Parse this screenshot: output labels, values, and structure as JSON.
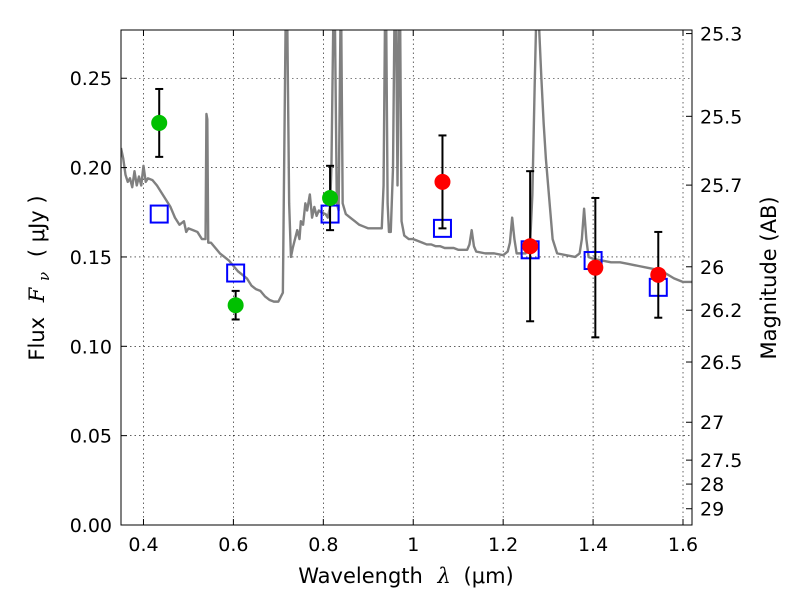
{
  "chart_data": {
    "type": "scatter",
    "title": "",
    "xlabel": "Wavelength",
    "xlabel_symbol": "λ",
    "xlabel_unit": "(μm)",
    "ylabel": "Flux",
    "ylabel_symbol": "F",
    "ylabel_subscript": "ν",
    "ylabel_unit": "( μJy )",
    "y2label": "Magnitude (AB)",
    "xlim": [
      0.35,
      1.62
    ],
    "ylim": [
      0.0,
      0.277
    ],
    "grid": true,
    "x_ticks": [
      {
        "value": 0.4,
        "label": "0.4"
      },
      {
        "value": 0.6,
        "label": "0.6"
      },
      {
        "value": 0.8,
        "label": "0.8"
      },
      {
        "value": 1.0,
        "label": "1"
      },
      {
        "value": 1.2,
        "label": "1.2"
      },
      {
        "value": 1.4,
        "label": "1.4"
      },
      {
        "value": 1.6,
        "label": "1.6"
      }
    ],
    "y_ticks": [
      {
        "value": 0.0,
        "label": "0.00"
      },
      {
        "value": 0.05,
        "label": "0.05"
      },
      {
        "value": 0.1,
        "label": "0.10"
      },
      {
        "value": 0.15,
        "label": "0.15"
      },
      {
        "value": 0.2,
        "label": "0.20"
      },
      {
        "value": 0.25,
        "label": "0.25"
      }
    ],
    "y2_ticks": [
      {
        "flux": 0.275,
        "label": "25.3"
      },
      {
        "flux": 0.2287,
        "label": "25.5"
      },
      {
        "flux": 0.1902,
        "label": "25.7"
      },
      {
        "flux": 0.1445,
        "label": "26"
      },
      {
        "flux": 0.1202,
        "label": "26.2"
      },
      {
        "flux": 0.0912,
        "label": "26.5"
      },
      {
        "flux": 0.0575,
        "label": "27"
      },
      {
        "flux": 0.0363,
        "label": "27.5"
      },
      {
        "flux": 0.0229,
        "label": "28"
      },
      {
        "flux": 0.0091,
        "label": "29"
      }
    ],
    "series": [
      {
        "kind": "line",
        "color": "#808080",
        "points": [
          [
            0.35,
            0.211
          ],
          [
            0.355,
            0.205
          ],
          [
            0.36,
            0.196
          ],
          [
            0.365,
            0.192
          ],
          [
            0.37,
            0.194
          ],
          [
            0.375,
            0.189
          ],
          [
            0.38,
            0.198
          ],
          [
            0.385,
            0.19
          ],
          [
            0.39,
            0.195
          ],
          [
            0.395,
            0.19
          ],
          [
            0.4,
            0.201
          ],
          [
            0.405,
            0.192
          ],
          [
            0.41,
            0.194
          ],
          [
            0.42,
            0.193
          ],
          [
            0.43,
            0.19
          ],
          [
            0.44,
            0.186
          ],
          [
            0.45,
            0.182
          ],
          [
            0.46,
            0.178
          ],
          [
            0.47,
            0.172
          ],
          [
            0.48,
            0.168
          ],
          [
            0.49,
            0.17
          ],
          [
            0.495,
            0.164
          ],
          [
            0.5,
            0.166
          ],
          [
            0.51,
            0.165
          ],
          [
            0.52,
            0.164
          ],
          [
            0.53,
            0.16
          ],
          [
            0.538,
            0.16
          ],
          [
            0.54,
            0.23
          ],
          [
            0.542,
            0.227
          ],
          [
            0.544,
            0.158
          ],
          [
            0.55,
            0.158
          ],
          [
            0.56,
            0.155
          ],
          [
            0.57,
            0.152
          ],
          [
            0.58,
            0.15
          ],
          [
            0.59,
            0.148
          ],
          [
            0.6,
            0.145
          ],
          [
            0.61,
            0.142
          ],
          [
            0.62,
            0.14
          ],
          [
            0.63,
            0.138
          ],
          [
            0.64,
            0.134
          ],
          [
            0.65,
            0.132
          ],
          [
            0.66,
            0.131
          ],
          [
            0.67,
            0.128
          ],
          [
            0.68,
            0.126
          ],
          [
            0.69,
            0.125
          ],
          [
            0.7,
            0.125
          ],
          [
            0.71,
            0.13
          ],
          [
            0.712,
            0.18
          ],
          [
            0.716,
            0.278
          ],
          [
            0.72,
            0.278
          ],
          [
            0.724,
            0.18
          ],
          [
            0.728,
            0.15
          ],
          [
            0.732,
            0.155
          ],
          [
            0.737,
            0.16
          ],
          [
            0.742,
            0.165
          ],
          [
            0.747,
            0.16
          ],
          [
            0.75,
            0.17
          ],
          [
            0.755,
            0.168
          ],
          [
            0.76,
            0.18
          ],
          [
            0.764,
            0.176
          ],
          [
            0.77,
            0.185
          ],
          [
            0.775,
            0.172
          ],
          [
            0.78,
            0.178
          ],
          [
            0.785,
            0.173
          ],
          [
            0.79,
            0.176
          ],
          [
            0.795,
            0.175
          ],
          [
            0.805,
            0.174
          ],
          [
            0.81,
            0.172
          ],
          [
            0.815,
            0.178
          ],
          [
            0.818,
            0.2
          ],
          [
            0.822,
            0.278
          ],
          [
            0.826,
            0.278
          ],
          [
            0.83,
            0.18
          ],
          [
            0.834,
            0.176
          ],
          [
            0.838,
            0.278
          ],
          [
            0.84,
            0.278
          ],
          [
            0.843,
            0.18
          ],
          [
            0.85,
            0.174
          ],
          [
            0.86,
            0.172
          ],
          [
            0.87,
            0.17
          ],
          [
            0.88,
            0.168
          ],
          [
            0.89,
            0.167
          ],
          [
            0.9,
            0.166
          ],
          [
            0.91,
            0.166
          ],
          [
            0.92,
            0.166
          ],
          [
            0.93,
            0.166
          ],
          [
            0.934,
            0.19
          ],
          [
            0.937,
            0.278
          ],
          [
            0.94,
            0.278
          ],
          [
            0.943,
            0.18
          ],
          [
            0.946,
            0.164
          ],
          [
            0.95,
            0.164
          ],
          [
            0.955,
            0.2
          ],
          [
            0.958,
            0.278
          ],
          [
            0.962,
            0.278
          ],
          [
            0.965,
            0.19
          ],
          [
            0.968,
            0.278
          ],
          [
            0.971,
            0.278
          ],
          [
            0.974,
            0.17
          ],
          [
            0.98,
            0.162
          ],
          [
            0.99,
            0.16
          ],
          [
            1.0,
            0.16
          ],
          [
            1.01,
            0.159
          ],
          [
            1.02,
            0.158
          ],
          [
            1.03,
            0.157
          ],
          [
            1.04,
            0.157
          ],
          [
            1.05,
            0.156
          ],
          [
            1.06,
            0.156
          ],
          [
            1.07,
            0.155
          ],
          [
            1.08,
            0.155
          ],
          [
            1.09,
            0.155
          ],
          [
            1.1,
            0.154
          ],
          [
            1.11,
            0.154
          ],
          [
            1.12,
            0.154
          ],
          [
            1.125,
            0.157
          ],
          [
            1.13,
            0.165
          ],
          [
            1.135,
            0.156
          ],
          [
            1.14,
            0.153
          ],
          [
            1.16,
            0.152
          ],
          [
            1.18,
            0.152
          ],
          [
            1.2,
            0.151
          ],
          [
            1.21,
            0.153
          ],
          [
            1.215,
            0.158
          ],
          [
            1.22,
            0.172
          ],
          [
            1.225,
            0.16
          ],
          [
            1.23,
            0.152
          ],
          [
            1.24,
            0.152
          ],
          [
            1.25,
            0.152
          ],
          [
            1.26,
            0.158
          ],
          [
            1.265,
            0.185
          ],
          [
            1.27,
            0.245
          ],
          [
            1.273,
            0.278
          ],
          [
            1.28,
            0.278
          ],
          [
            1.285,
            0.25
          ],
          [
            1.29,
            0.225
          ],
          [
            1.295,
            0.205
          ],
          [
            1.3,
            0.19
          ],
          [
            1.305,
            0.175
          ],
          [
            1.31,
            0.16
          ],
          [
            1.32,
            0.152
          ],
          [
            1.34,
            0.151
          ],
          [
            1.36,
            0.15
          ],
          [
            1.37,
            0.152
          ],
          [
            1.375,
            0.16
          ],
          [
            1.38,
            0.177
          ],
          [
            1.385,
            0.16
          ],
          [
            1.39,
            0.15
          ],
          [
            1.4,
            0.149
          ],
          [
            1.42,
            0.148
          ],
          [
            1.44,
            0.147
          ],
          [
            1.46,
            0.147
          ],
          [
            1.48,
            0.146
          ],
          [
            1.5,
            0.145
          ],
          [
            1.52,
            0.144
          ],
          [
            1.54,
            0.143
          ],
          [
            1.56,
            0.141
          ],
          [
            1.58,
            0.138
          ],
          [
            1.6,
            0.136
          ],
          [
            1.62,
            0.136
          ]
        ]
      },
      {
        "kind": "squares",
        "color": "#0000ff",
        "points": [
          [
            0.435,
            0.174
          ],
          [
            0.605,
            0.141
          ],
          [
            0.815,
            0.174
          ],
          [
            1.065,
            0.166
          ],
          [
            1.26,
            0.154
          ],
          [
            1.4,
            0.148
          ],
          [
            1.545,
            0.133
          ]
        ]
      },
      {
        "kind": "errorbar-points",
        "color": "#00c000",
        "points": [
          {
            "x": 0.435,
            "y": 0.225,
            "err": 0.019
          },
          {
            "x": 0.605,
            "y": 0.123,
            "err": 0.008
          },
          {
            "x": 0.815,
            "y": 0.183,
            "err": 0.018
          }
        ]
      },
      {
        "kind": "errorbar-points",
        "color": "#ff0000",
        "points": [
          {
            "x": 1.065,
            "y": 0.192,
            "err": 0.026
          },
          {
            "x": 1.26,
            "y": 0.156,
            "err": 0.042
          },
          {
            "x": 1.405,
            "y": 0.144,
            "err": 0.039
          },
          {
            "x": 1.545,
            "y": 0.14,
            "err": 0.024
          }
        ]
      }
    ]
  }
}
